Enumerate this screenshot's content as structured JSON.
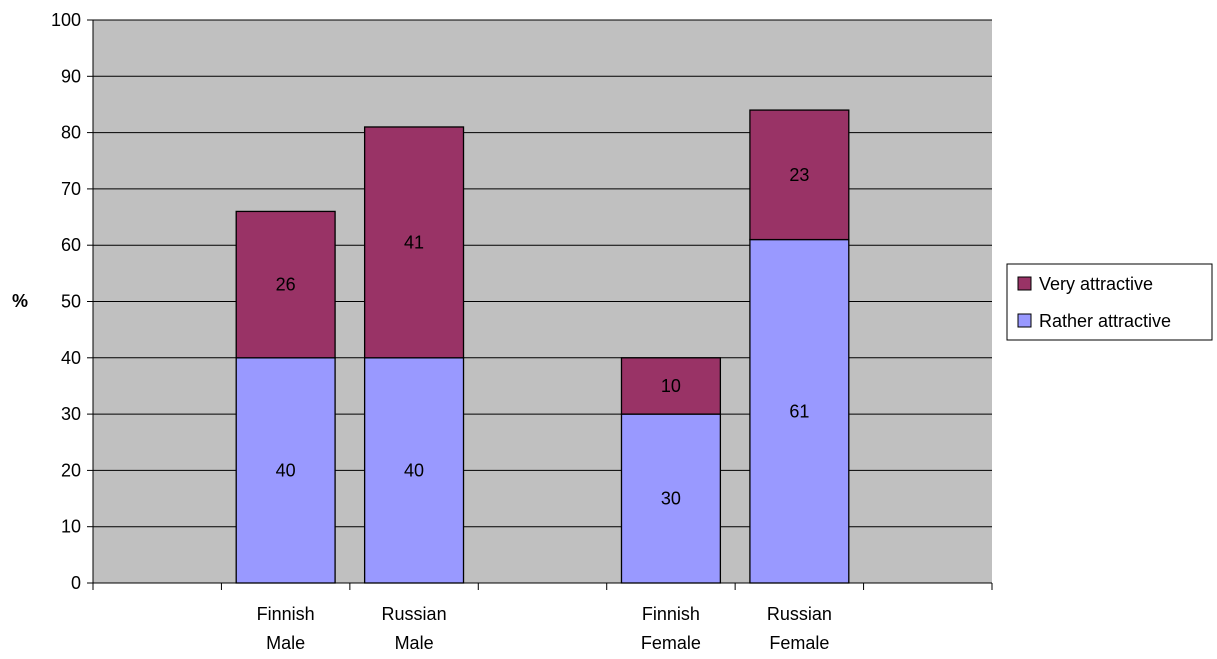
{
  "chart_data": {
    "type": "bar",
    "stacked": true,
    "categories": [
      [
        "",
        ""
      ],
      [
        "Finnish",
        "Male"
      ],
      [
        "Russian",
        "Male"
      ],
      [
        "",
        ""
      ],
      [
        "Finnish",
        "Female"
      ],
      [
        "Russian",
        "Female"
      ],
      [
        "",
        ""
      ]
    ],
    "series": [
      {
        "name": "Rather attractive",
        "color": "#9999ff",
        "values": [
          null,
          40,
          40,
          null,
          30,
          61,
          null
        ]
      },
      {
        "name": "Very attractive",
        "color": "#993366",
        "values": [
          null,
          26,
          41,
          null,
          10,
          23,
          null
        ]
      }
    ],
    "title": "",
    "xlabel": "",
    "ylabel": "%",
    "ylim": [
      0,
      100
    ],
    "yticks": [
      0,
      10,
      20,
      30,
      40,
      50,
      60,
      70,
      80,
      90,
      100
    ],
    "grid": true,
    "plot_background": "#c0c0c0",
    "legend_position": "right",
    "legend_order": [
      "Very attractive",
      "Rather attractive"
    ]
  }
}
